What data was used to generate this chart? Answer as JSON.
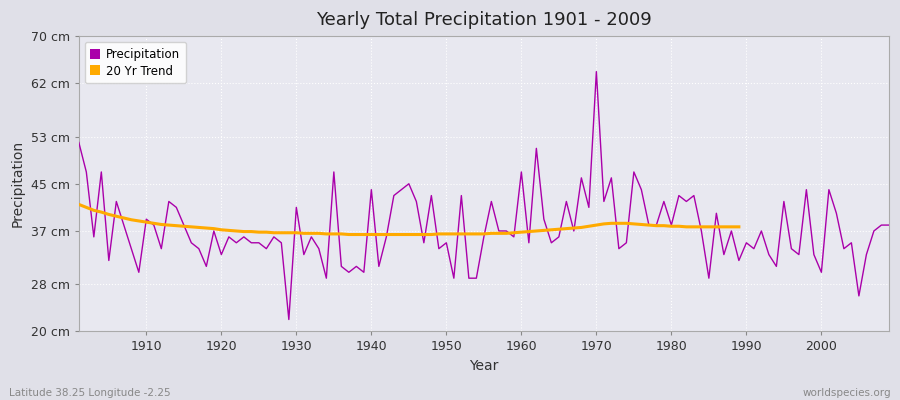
{
  "title": "Yearly Total Precipitation 1901 - 2009",
  "xlabel": "Year",
  "ylabel": "Precipitation",
  "subtitle": "Latitude 38.25 Longitude -2.25",
  "watermark": "worldspecies.org",
  "bg_color": "#e0e0e8",
  "plot_bg_color": "#e8e8f0",
  "grid_color": "#ffffff",
  "precip_color": "#aa00aa",
  "trend_color": "#ffaa00",
  "ylim": [
    20,
    70
  ],
  "yticks": [
    20,
    28,
    37,
    45,
    53,
    62,
    70
  ],
  "ytick_labels": [
    "20 cm",
    "28 cm",
    "37 cm",
    "45 cm",
    "53 cm",
    "62 cm",
    "70 cm"
  ],
  "years": [
    1901,
    1902,
    1903,
    1904,
    1905,
    1906,
    1907,
    1908,
    1909,
    1910,
    1911,
    1912,
    1913,
    1914,
    1915,
    1916,
    1917,
    1918,
    1919,
    1920,
    1921,
    1922,
    1923,
    1924,
    1925,
    1926,
    1927,
    1928,
    1929,
    1930,
    1931,
    1932,
    1933,
    1934,
    1935,
    1936,
    1937,
    1938,
    1939,
    1940,
    1941,
    1942,
    1943,
    1944,
    1945,
    1946,
    1947,
    1948,
    1949,
    1950,
    1951,
    1952,
    1953,
    1954,
    1955,
    1956,
    1957,
    1958,
    1959,
    1960,
    1961,
    1962,
    1963,
    1964,
    1965,
    1966,
    1967,
    1968,
    1969,
    1970,
    1971,
    1972,
    1973,
    1974,
    1975,
    1976,
    1977,
    1978,
    1979,
    1980,
    1981,
    1982,
    1983,
    1984,
    1985,
    1986,
    1987,
    1988,
    1989,
    1990,
    1991,
    1992,
    1993,
    1994,
    1995,
    1996,
    1997,
    1998,
    1999,
    2000,
    2001,
    2002,
    2003,
    2004,
    2005,
    2006,
    2007,
    2008,
    2009
  ],
  "precip": [
    52,
    47,
    36,
    47,
    32,
    42,
    38,
    34,
    30,
    39,
    38,
    34,
    42,
    41,
    38,
    35,
    34,
    31,
    37,
    33,
    36,
    35,
    36,
    35,
    35,
    34,
    36,
    35,
    22,
    41,
    33,
    36,
    34,
    29,
    47,
    31,
    30,
    31,
    30,
    44,
    31,
    36,
    43,
    44,
    45,
    42,
    35,
    43,
    34,
    35,
    29,
    43,
    29,
    29,
    36,
    42,
    37,
    37,
    36,
    47,
    35,
    51,
    39,
    35,
    36,
    42,
    37,
    46,
    41,
    64,
    42,
    46,
    34,
    35,
    47,
    44,
    38,
    38,
    42,
    38,
    43,
    42,
    43,
    37,
    29,
    40,
    33,
    37,
    32,
    35,
    34,
    37,
    33,
    31,
    42,
    34,
    33,
    44,
    33,
    30,
    44,
    40,
    34,
    35,
    26,
    33,
    37,
    38,
    38
  ],
  "trend_years": [
    1901,
    1902,
    1903,
    1904,
    1905,
    1906,
    1907,
    1908,
    1909,
    1910,
    1911,
    1912,
    1913,
    1914,
    1915,
    1916,
    1917,
    1918,
    1919,
    1920,
    1921,
    1922,
    1923,
    1924,
    1925,
    1926,
    1927,
    1928,
    1929,
    1930,
    1931,
    1932,
    1933,
    1934,
    1935,
    1936,
    1937,
    1938,
    1939,
    1940,
    1941,
    1942,
    1943,
    1944,
    1945,
    1946,
    1947,
    1948,
    1949,
    1950,
    1951,
    1952,
    1953,
    1954,
    1955,
    1956,
    1957,
    1958,
    1959,
    1960,
    1961,
    1962,
    1963,
    1964,
    1965,
    1966,
    1967,
    1968,
    1969,
    1970,
    1971,
    1972,
    1973,
    1974,
    1975,
    1976,
    1977,
    1978,
    1979,
    1980,
    1981,
    1982,
    1983,
    1984,
    1985,
    1986,
    1987,
    1988,
    1989
  ],
  "trend": [
    41.5,
    41.0,
    40.5,
    40.2,
    39.8,
    39.5,
    39.2,
    38.9,
    38.7,
    38.5,
    38.3,
    38.1,
    38.0,
    37.9,
    37.8,
    37.7,
    37.6,
    37.5,
    37.4,
    37.2,
    37.1,
    37.0,
    36.9,
    36.9,
    36.8,
    36.8,
    36.7,
    36.7,
    36.7,
    36.7,
    36.6,
    36.6,
    36.6,
    36.5,
    36.5,
    36.5,
    36.4,
    36.4,
    36.4,
    36.4,
    36.4,
    36.4,
    36.4,
    36.4,
    36.4,
    36.4,
    36.4,
    36.4,
    36.5,
    36.5,
    36.5,
    36.5,
    36.5,
    36.5,
    36.5,
    36.6,
    36.6,
    36.6,
    36.7,
    36.8,
    36.9,
    37.0,
    37.1,
    37.2,
    37.3,
    37.4,
    37.5,
    37.6,
    37.8,
    38.0,
    38.2,
    38.3,
    38.3,
    38.3,
    38.2,
    38.1,
    38.0,
    37.9,
    37.9,
    37.8,
    37.8,
    37.7,
    37.7,
    37.7,
    37.7,
    37.7,
    37.7,
    37.7,
    37.7
  ]
}
